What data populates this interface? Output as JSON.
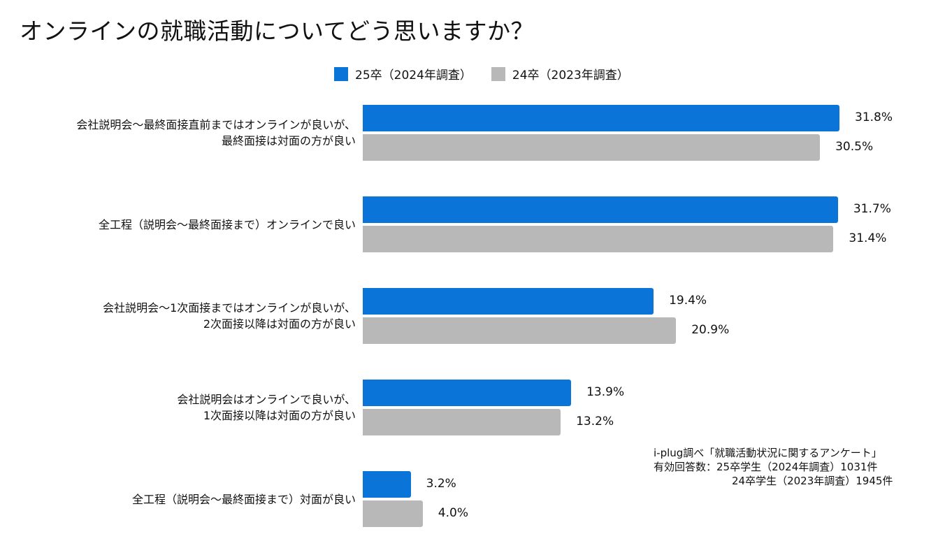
{
  "chart_data": {
    "type": "bar",
    "orientation": "horizontal",
    "title": "オンラインの就職活動についてどう思いますか？",
    "categories": [
      [
        "会社説明会～最終面接直前まではオンラインが良いが、",
        "最終面接は対面の方が良い"
      ],
      [
        "全工程（説明会～最終面接まで）オンラインで良い"
      ],
      [
        "会社説明会～1次面接まではオンラインが良いが、",
        "2次面接以降は対面の方が良い"
      ],
      [
        "会社説明会はオンラインで良いが、",
        "1次面接以降は対面の方が良い"
      ],
      [
        "全工程（説明会～最終面接まで）対面が良い"
      ]
    ],
    "series": [
      {
        "name": "25卒（2024年調査）",
        "color": "#0B74D9",
        "values": [
          31.8,
          31.7,
          19.4,
          13.9,
          3.2
        ]
      },
      {
        "name": "24卒（2023年調査）",
        "color": "#B8B8B8",
        "values": [
          30.5,
          31.4,
          20.9,
          13.2,
          4.0
        ]
      }
    ],
    "value_suffix": "%",
    "xlim": [
      0,
      35
    ],
    "legend_position": "top"
  },
  "note": {
    "line1": "i-plug調べ「就職活動状況に関するアンケート」",
    "line2": "有効回答数：25卒学生（2024年調査）1031件",
    "line3": "24卒学生（2023年調査）1945件"
  }
}
